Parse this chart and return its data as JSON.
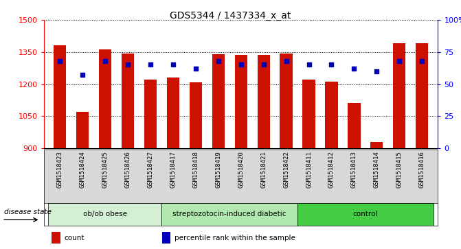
{
  "title": "GDS5344 / 1437334_x_at",
  "samples": [
    "GSM1518423",
    "GSM1518424",
    "GSM1518425",
    "GSM1518426",
    "GSM1518427",
    "GSM1518417",
    "GSM1518418",
    "GSM1518419",
    "GSM1518420",
    "GSM1518421",
    "GSM1518422",
    "GSM1518411",
    "GSM1518412",
    "GSM1518413",
    "GSM1518414",
    "GSM1518415",
    "GSM1518416"
  ],
  "counts": [
    1380,
    1070,
    1362,
    1342,
    1222,
    1230,
    1207,
    1340,
    1337,
    1337,
    1342,
    1222,
    1212,
    1112,
    928,
    1392,
    1392
  ],
  "percentile_ranks": [
    68,
    57,
    68,
    65,
    65,
    65,
    62,
    68,
    65,
    65,
    68,
    65,
    65,
    62,
    60,
    68,
    68
  ],
  "groups": [
    {
      "label": "ob/ob obese",
      "start": 0,
      "end": 5,
      "color": "#d4f0d4"
    },
    {
      "label": "streptozotocin-induced diabetic",
      "start": 5,
      "end": 11,
      "color": "#b0e8b0"
    },
    {
      "label": "control",
      "start": 11,
      "end": 17,
      "color": "#44cc44"
    }
  ],
  "ylim_left": [
    900,
    1500
  ],
  "ylim_right": [
    0,
    100
  ],
  "yticks_left": [
    900,
    1050,
    1200,
    1350,
    1500
  ],
  "yticks_right": [
    0,
    25,
    50,
    75,
    100
  ],
  "bar_color": "#cc1100",
  "percentile_color": "#0000bb",
  "bar_width": 0.55,
  "disease_state_label": "disease state",
  "legend_items": [
    {
      "label": "count",
      "color": "#cc1100"
    },
    {
      "label": "percentile rank within the sample",
      "color": "#0000bb"
    }
  ]
}
